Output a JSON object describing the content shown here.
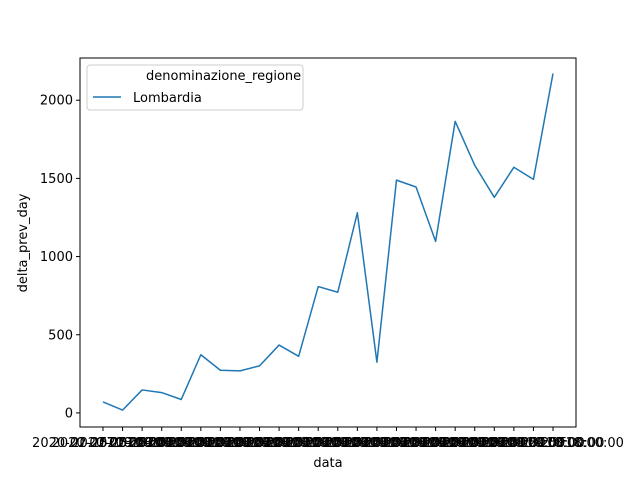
{
  "chart_data": {
    "type": "line",
    "xlabel": "data",
    "ylabel": "delta_prev_day",
    "ylim": [
      -90,
      2270
    ],
    "yticks": [
      0,
      500,
      1000,
      1500,
      2000
    ],
    "x_tick_label_text": "2020-02-25T18:00:00",
    "legend": {
      "title": "denominazione_regione",
      "placement": "upper-left"
    },
    "series": [
      {
        "name": "Lombardia",
        "color": "#1f77b4",
        "values": [
          70,
          18,
          147,
          130,
          86,
          372,
          273,
          269,
          301,
          434,
          362,
          808,
          772,
          1280,
          325,
          1489,
          1445,
          1097,
          1865,
          1584,
          1379,
          1571,
          1494,
          2171
        ]
      }
    ]
  }
}
